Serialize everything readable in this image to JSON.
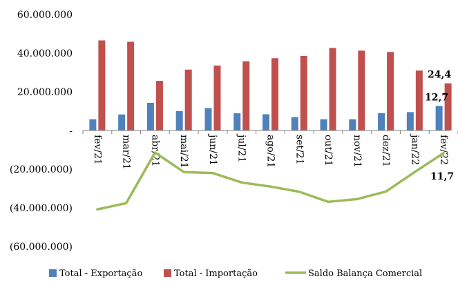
{
  "chart_data": {
    "type": "bar",
    "categories": [
      "fev/21",
      "mar/21",
      "abr/21",
      "mai/21",
      "jun/21",
      "jul/21",
      "ago/21",
      "set/21",
      "out/21",
      "nov/21",
      "dez/21",
      "jan/22",
      "fev/22"
    ],
    "series": [
      {
        "name": "Total - Exportação",
        "type": "bar",
        "color": "#4f81bd",
        "values": [
          5800000,
          8300000,
          14300000,
          10000000,
          11600000,
          8900000,
          8400000,
          6900000,
          5800000,
          5800000,
          9000000,
          9500000,
          12700000
        ]
      },
      {
        "name": "Total - Importação",
        "type": "bar",
        "color": "#c0504d",
        "values": [
          46600000,
          45900000,
          25700000,
          31500000,
          33600000,
          35800000,
          37400000,
          38600000,
          42700000,
          41300000,
          40600000,
          31000000,
          24400000
        ]
      },
      {
        "name": "Saldo Balança Comercial",
        "type": "line",
        "color": "#9bbb59",
        "values": [
          -40800000,
          -37600000,
          -11400000,
          -21500000,
          -22000000,
          -26900000,
          -29000000,
          -31700000,
          -36900000,
          -35500000,
          -31600000,
          -21500000,
          -11700000
        ]
      }
    ],
    "yaxis": {
      "ylim": [
        -60000000,
        60000000
      ],
      "ticks": [
        60000000,
        40000000,
        20000000,
        0,
        -20000000,
        -40000000,
        -60000000
      ],
      "tick_labels": [
        "60.000.000",
        "40.000.000",
        "20.000.000",
        "-",
        "(20.000.000)",
        "(40.000.000)",
        "(60.000.000)"
      ]
    },
    "annotations": [
      {
        "text": "24,4",
        "series": "Total - Importação",
        "category": "fev/22"
      },
      {
        "text": "12,7",
        "series": "Total - Exportação",
        "category": "fev/22"
      },
      {
        "text": "11,7",
        "series": "Saldo Balança Comercial",
        "category": "fev/22"
      }
    ],
    "legend": {
      "position": "bottom"
    },
    "grid": false
  }
}
